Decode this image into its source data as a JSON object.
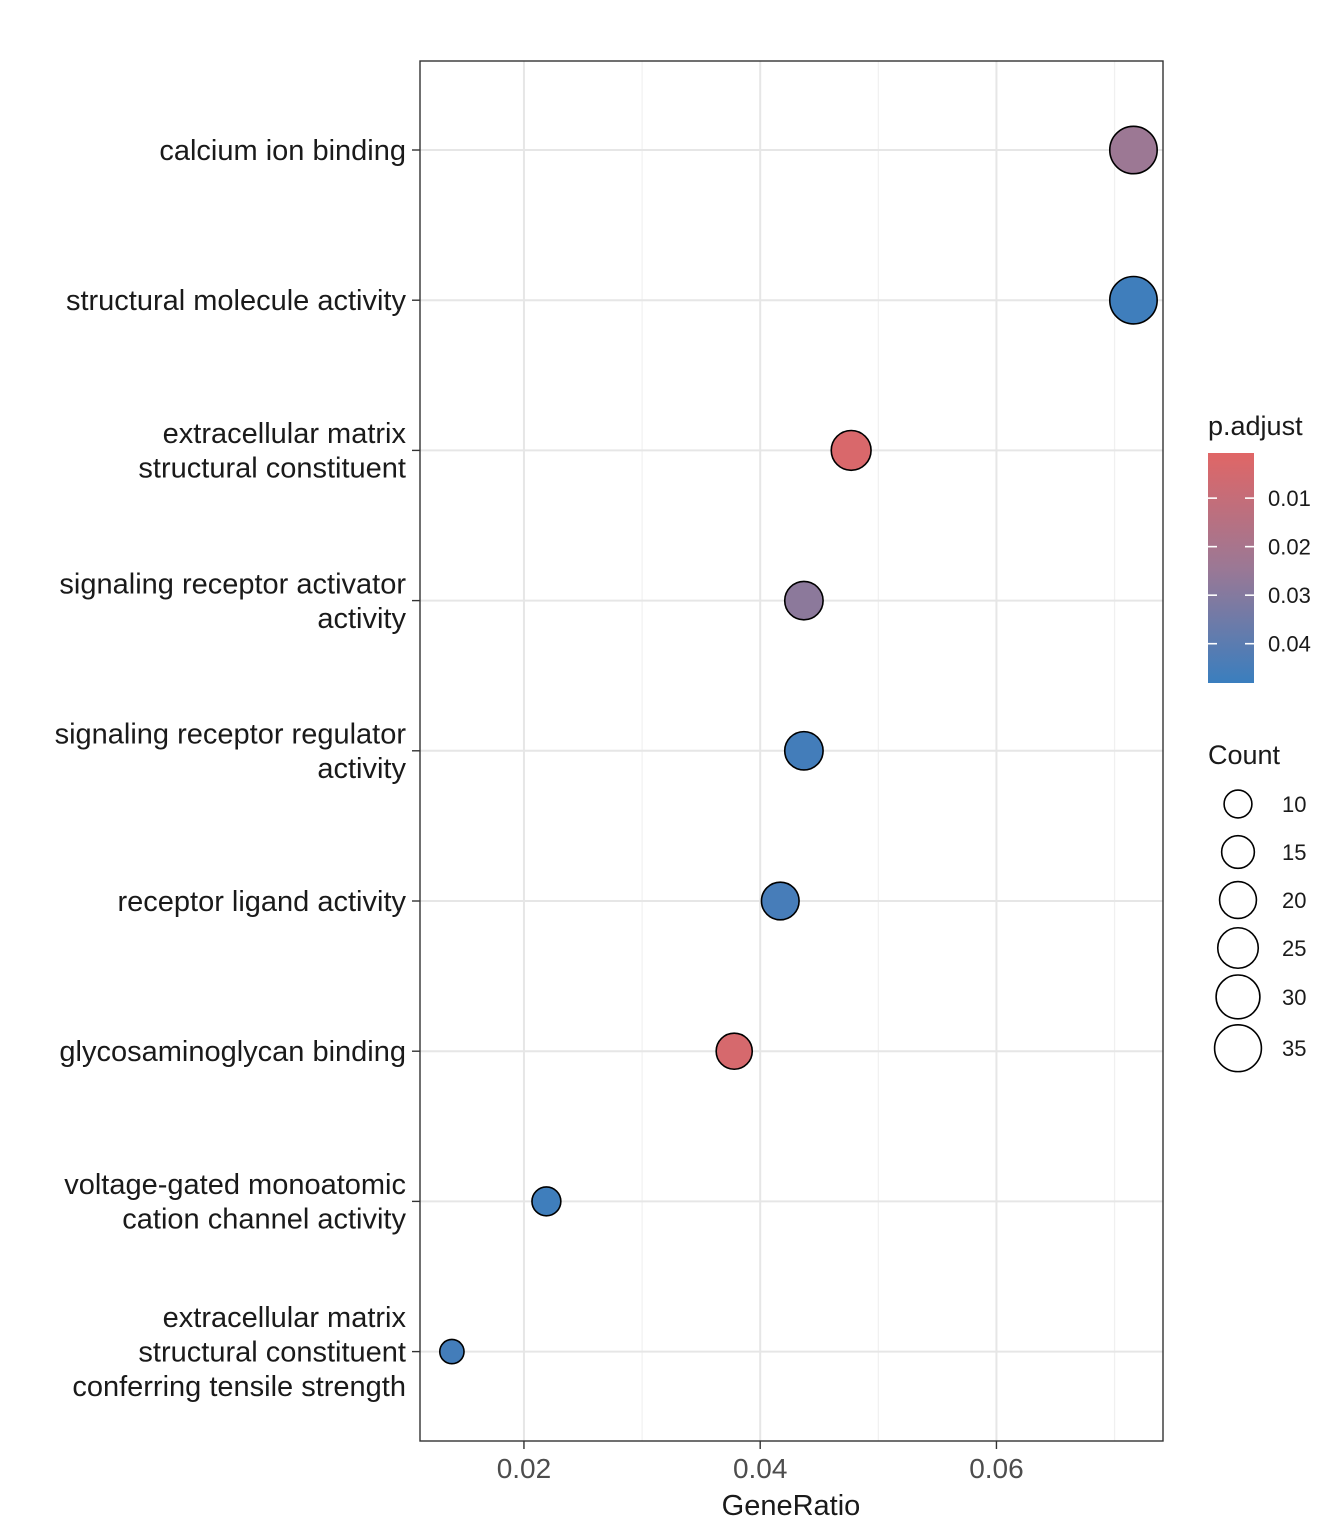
{
  "chart_data": {
    "type": "scatter",
    "title": "",
    "xlabel": "GeneRatio",
    "ylabel": "",
    "xlim": [
      0.0112,
      0.0741
    ],
    "x_ticks": [
      0.02,
      0.04,
      0.06
    ],
    "x_tick_labels": [
      "0.02",
      "0.04",
      "0.06"
    ],
    "grid": true,
    "categories": [
      "calcium ion binding",
      "structural molecule activity",
      "extracellular matrix\nstructural constituent",
      "signaling receptor activator\nactivity",
      "signaling receptor regulator\nactivity",
      "receptor ligand activity",
      "glycosaminoglycan binding",
      "voltage-gated monoatomic\ncation channel activity",
      "extracellular matrix\nstructural constituent\nconferring tensile strength"
    ],
    "points": [
      {
        "term": "calcium ion binding",
        "gene_ratio": 0.0716,
        "count": 36,
        "p_adjust": 0.024
      },
      {
        "term": "structural molecule activity",
        "gene_ratio": 0.0716,
        "count": 36,
        "p_adjust": 0.047
      },
      {
        "term": "extracellular matrix structural constituent",
        "gene_ratio": 0.0477,
        "count": 24,
        "p_adjust": 0.003
      },
      {
        "term": "signaling receptor activator activity",
        "gene_ratio": 0.0437,
        "count": 22,
        "p_adjust": 0.028
      },
      {
        "term": "signaling receptor regulator activity",
        "gene_ratio": 0.0437,
        "count": 22,
        "p_adjust": 0.046
      },
      {
        "term": "receptor ligand activity",
        "gene_ratio": 0.0417,
        "count": 21,
        "p_adjust": 0.045
      },
      {
        "term": "glycosaminoglycan binding",
        "gene_ratio": 0.0378,
        "count": 19,
        "p_adjust": 0.004
      },
      {
        "term": "voltage-gated monoatomic cation channel activity",
        "gene_ratio": 0.0219,
        "count": 11,
        "p_adjust": 0.047
      },
      {
        "term": "extracellular matrix structural constituent conferring tensile strength",
        "gene_ratio": 0.0139,
        "count": 7,
        "p_adjust": 0.046
      }
    ],
    "color_legend": {
      "title": "p.adjust",
      "range": [
        0.0007,
        0.0481
      ],
      "ticks": [
        0.01,
        0.02,
        0.03,
        0.04
      ],
      "tick_labels": [
        "0.01",
        "0.02",
        "0.03",
        "0.04"
      ],
      "low_color": "#E06666",
      "high_color": "#3A7EBE"
    },
    "size_legend": {
      "title": "Count",
      "values": [
        10,
        15,
        20,
        25,
        30,
        35
      ],
      "labels": [
        "10",
        "15",
        "20",
        "25",
        "30",
        "35"
      ]
    },
    "legend_position": "right"
  }
}
